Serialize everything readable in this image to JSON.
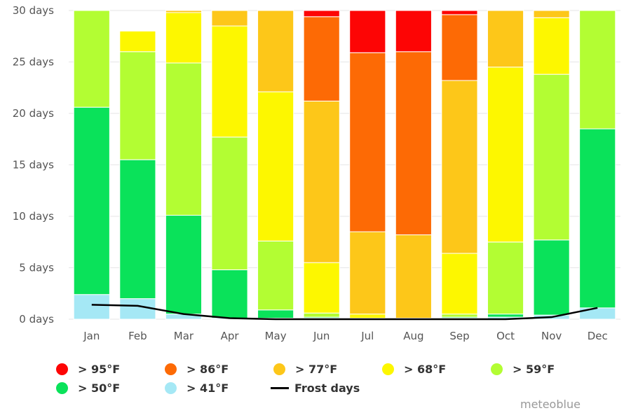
{
  "chart_data": {
    "type": "bar",
    "stacked": true,
    "categories": [
      "Jan",
      "Feb",
      "Mar",
      "Apr",
      "May",
      "Jun",
      "Jul",
      "Aug",
      "Sep",
      "Oct",
      "Nov",
      "Dec"
    ],
    "ylim": [
      0,
      30
    ],
    "y_ticks": [
      "0 days",
      "5 days",
      "10 days",
      "15 days",
      "20 days",
      "25 days",
      "30 days"
    ],
    "series": [
      {
        "name": "> 41°F",
        "color": "#a5e8f5",
        "values": [
          2.4,
          2.0,
          0.5,
          0.1,
          0.1,
          0.1,
          0,
          0,
          0.1,
          0.2,
          0.4,
          1.1
        ]
      },
      {
        "name": "> 50°F",
        "color": "#0ae25a",
        "values": [
          18.2,
          13.5,
          9.6,
          4.7,
          0.8,
          0.1,
          0,
          0,
          0.1,
          0.3,
          7.3,
          17.4
        ]
      },
      {
        "name": "> 59°F",
        "color": "#b3fd33",
        "values": [
          10.4,
          10.5,
          14.8,
          12.9,
          6.7,
          0.4,
          0.1,
          0,
          0.3,
          7.0,
          16.1,
          12.5
        ]
      },
      {
        "name": "> 68°F",
        "color": "#fdf700",
        "values": [
          0,
          2.0,
          4.9,
          10.8,
          14.5,
          4.9,
          0.4,
          0.1,
          5.9,
          17.0,
          5.5,
          0
        ]
      },
      {
        "name": "> 77°F",
        "color": "#fdc719",
        "values": [
          0,
          0,
          0.2,
          1.5,
          7.9,
          15.7,
          8.0,
          8.1,
          16.8,
          5.5,
          0.7,
          0
        ]
      },
      {
        "name": "> 86°F",
        "color": "#fd6a05",
        "values": [
          0,
          0,
          0,
          0,
          0,
          8.2,
          17.4,
          17.8,
          6.4,
          0,
          0,
          0
        ]
      },
      {
        "name": "> 95°F",
        "color": "#fd0505",
        "values": [
          0,
          0,
          0,
          0,
          0,
          0.6,
          4.1,
          4.0,
          0.4,
          0,
          0,
          0
        ]
      }
    ],
    "line_series": {
      "name": "Frost days",
      "color": "#000000",
      "values": [
        1.4,
        1.3,
        0.5,
        0.1,
        0,
        0,
        0,
        0,
        0,
        0,
        0.2,
        1.1
      ]
    }
  },
  "legend": [
    {
      "label": "> 95°F",
      "color": "#fd0505",
      "symbol": "dot"
    },
    {
      "label": "> 86°F",
      "color": "#fd6a05",
      "symbol": "dot"
    },
    {
      "label": "> 77°F",
      "color": "#fdc719",
      "symbol": "dot"
    },
    {
      "label": "> 68°F",
      "color": "#fdf700",
      "symbol": "dot"
    },
    {
      "label": "> 59°F",
      "color": "#b3fd33",
      "symbol": "dot"
    },
    {
      "label": "> 50°F",
      "color": "#0ae25a",
      "symbol": "dot"
    },
    {
      "label": "> 41°F",
      "color": "#a5e8f5",
      "symbol": "dot"
    },
    {
      "label": "Frost days",
      "color": "#000000",
      "symbol": "line"
    }
  ],
  "credit": "meteoblue"
}
